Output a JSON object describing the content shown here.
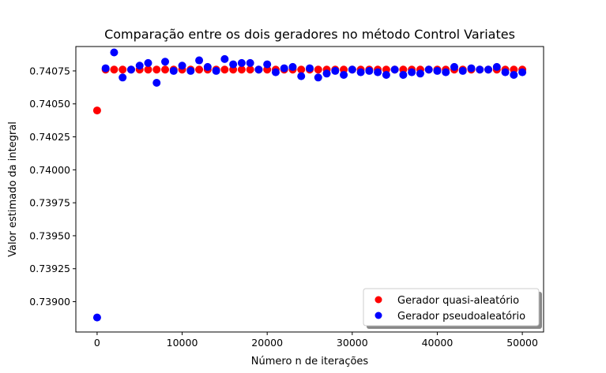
{
  "chart_data": {
    "type": "scatter",
    "title": "Comparação entre os dois geradores no método Control Variates",
    "xlabel": "Número n de iterações",
    "ylabel": "Valor estimado da integral",
    "xlim": [
      -2500,
      52500
    ],
    "ylim": [
      0.73877,
      0.740935
    ],
    "xticks": [
      0,
      10000,
      20000,
      30000,
      40000,
      50000
    ],
    "yticks": [
      0.739,
      0.73925,
      0.7395,
      0.73975,
      0.74,
      0.74025,
      0.7405,
      0.74075
    ],
    "ytick_labels": [
      "0.73900",
      "0.73925",
      "0.73950",
      "0.73975",
      "0.74000",
      "0.74025",
      "0.74050",
      "0.74075"
    ],
    "grid": false,
    "legend_position": "lower-right",
    "series": [
      {
        "name": "Gerador quasi-aleatório",
        "color": "#ff0000",
        "x": [
          0,
          1000,
          2000,
          3000,
          4000,
          5000,
          6000,
          7000,
          8000,
          9000,
          10000,
          11000,
          12000,
          13000,
          14000,
          15000,
          16000,
          17000,
          18000,
          19000,
          20000,
          21000,
          22000,
          23000,
          24000,
          25000,
          26000,
          27000,
          28000,
          29000,
          30000,
          31000,
          32000,
          33000,
          34000,
          35000,
          36000,
          37000,
          38000,
          39000,
          40000,
          41000,
          42000,
          43000,
          44000,
          45000,
          46000,
          47000,
          48000,
          49000,
          50000
        ],
        "y": [
          0.74045,
          0.74076,
          0.74076,
          0.74076,
          0.74076,
          0.74076,
          0.74076,
          0.74076,
          0.74076,
          0.74076,
          0.74076,
          0.74076,
          0.74076,
          0.74076,
          0.74076,
          0.74076,
          0.74076,
          0.74076,
          0.74076,
          0.74076,
          0.74076,
          0.74076,
          0.74076,
          0.74076,
          0.74076,
          0.74076,
          0.74076,
          0.74076,
          0.74076,
          0.74076,
          0.74076,
          0.74076,
          0.74076,
          0.74076,
          0.74076,
          0.74076,
          0.74076,
          0.74076,
          0.74076,
          0.74076,
          0.74076,
          0.74076,
          0.74076,
          0.74076,
          0.74076,
          0.74076,
          0.74076,
          0.74076,
          0.74076,
          0.74076,
          0.74076
        ]
      },
      {
        "name": "Gerador pseudoaleatório",
        "color": "#0000ff",
        "x": [
          0,
          1000,
          2000,
          3000,
          4000,
          5000,
          6000,
          7000,
          8000,
          9000,
          10000,
          11000,
          12000,
          13000,
          14000,
          15000,
          16000,
          17000,
          18000,
          19000,
          20000,
          21000,
          22000,
          23000,
          24000,
          25000,
          26000,
          27000,
          28000,
          29000,
          30000,
          31000,
          32000,
          33000,
          34000,
          35000,
          36000,
          37000,
          38000,
          39000,
          40000,
          41000,
          42000,
          43000,
          44000,
          45000,
          46000,
          47000,
          48000,
          49000,
          50000
        ],
        "y": [
          0.73888,
          0.74077,
          0.74089,
          0.7407,
          0.74076,
          0.74079,
          0.74081,
          0.74066,
          0.74082,
          0.74075,
          0.74079,
          0.74075,
          0.74083,
          0.74078,
          0.74075,
          0.74084,
          0.7408,
          0.74081,
          0.74081,
          0.74076,
          0.7408,
          0.74074,
          0.74077,
          0.74078,
          0.74071,
          0.74077,
          0.7407,
          0.74073,
          0.74075,
          0.74072,
          0.74076,
          0.74074,
          0.74075,
          0.74074,
          0.74072,
          0.74076,
          0.74072,
          0.74074,
          0.74073,
          0.74076,
          0.74075,
          0.74074,
          0.74078,
          0.74075,
          0.74077,
          0.74076,
          0.74076,
          0.74078,
          0.74074,
          0.74072,
          0.74074
        ]
      }
    ]
  }
}
